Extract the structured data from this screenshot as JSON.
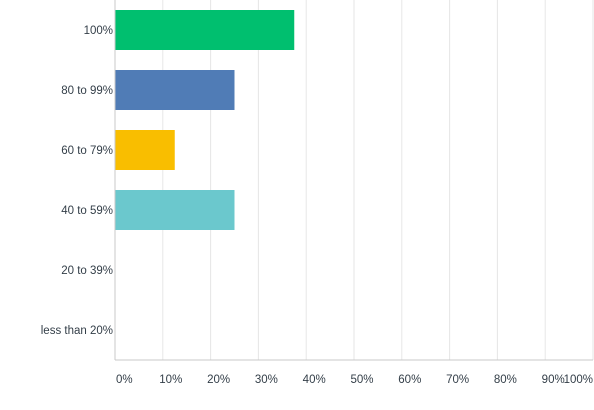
{
  "chart_data": {
    "type": "bar",
    "orientation": "horizontal",
    "categories": [
      "100%",
      "80 to 99%",
      "60 to 79%",
      "40 to 59%",
      "20 to 39%",
      "less than 20%"
    ],
    "values": [
      37.5,
      25,
      12.5,
      25,
      0,
      0
    ],
    "colors": [
      "#00bf6f",
      "#507cb6",
      "#f9be00",
      "#6bc8cd",
      "#ff8b4f",
      "#7f7fff"
    ],
    "xlim": [
      0,
      100
    ],
    "x_ticks": [
      "0%",
      "10%",
      "20%",
      "30%",
      "40%",
      "50%",
      "60%",
      "70%",
      "80%",
      "90%",
      "100%"
    ],
    "grid": true,
    "title": "",
    "xlabel": "",
    "ylabel": ""
  }
}
